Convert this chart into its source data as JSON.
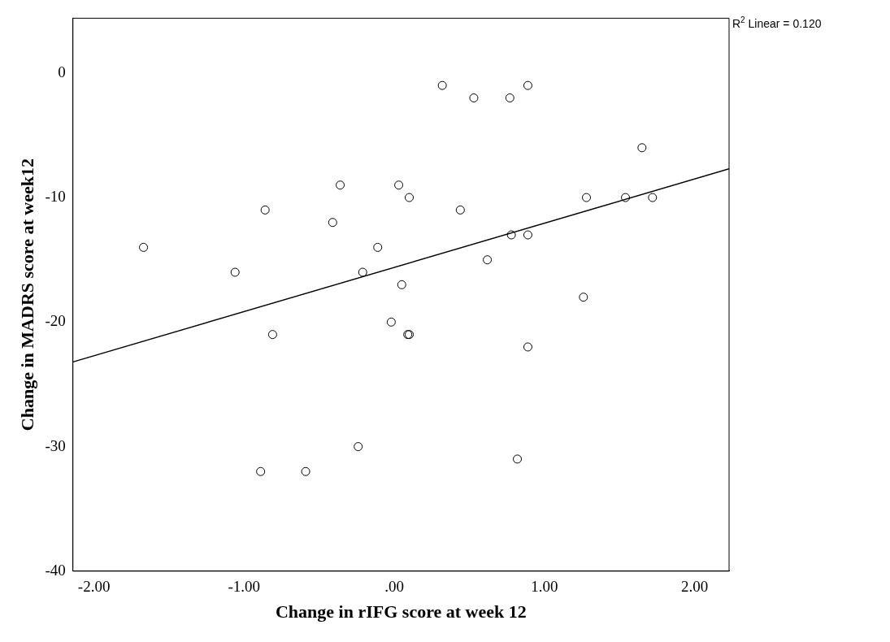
{
  "chart_data": {
    "type": "scatter",
    "xlabel": "Change in rIFG score at week 12",
    "ylabel": "Change in MADRS score at week12",
    "annotations": [
      "R$^{2}$ Linear = 0.120"
    ],
    "xlim": [
      -2.14,
      2.23
    ],
    "ylim": [
      -40,
      4.4
    ],
    "xticks": [
      {
        "value": -2,
        "label": "-2.00"
      },
      {
        "value": -1,
        "label": "-1.00"
      },
      {
        "value": 0,
        "label": ".00"
      },
      {
        "value": 1,
        "label": "1.00"
      },
      {
        "value": 2,
        "label": "2.00"
      }
    ],
    "yticks": [
      -40,
      -30,
      -20,
      -10,
      0
    ],
    "series": [
      {
        "type": "scatter",
        "marker": "circle",
        "color": "#000000",
        "x": [
          -1.67,
          -1.06,
          -0.86,
          -0.81,
          -0.89,
          -0.59,
          -0.41,
          -0.36,
          -0.11,
          -0.21,
          -0.24,
          -0.02,
          0.03,
          0.05,
          0.1,
          0.1,
          0.09,
          0.32,
          0.53,
          0.44,
          0.62,
          0.77,
          0.78,
          0.89,
          0.89,
          0.82,
          0.89,
          1.26,
          1.28,
          1.54,
          1.65,
          1.72
        ],
        "values": [
          -14,
          -16,
          -11,
          -21,
          -32,
          -32,
          -12,
          -9,
          -14,
          -16,
          -30,
          -20,
          -9,
          -17,
          -10,
          -21,
          -21,
          -1,
          -2,
          -11,
          -15,
          -2,
          -13,
          -13,
          -1,
          -31,
          -22,
          -18,
          -10,
          -10,
          -6,
          -10
        ]
      },
      {
        "type": "line",
        "marker": "none",
        "color": "#000000",
        "line_style": "solid",
        "x": [
          -2.14,
          2.23
        ],
        "values": [
          -23.2,
          -7.7
        ]
      }
    ]
  }
}
